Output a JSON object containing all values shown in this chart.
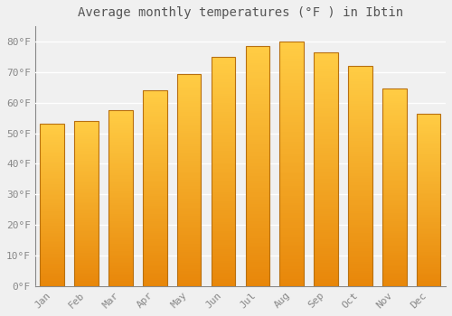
{
  "title": "Average monthly temperatures (°F ) in Ibtin",
  "months": [
    "Jan",
    "Feb",
    "Mar",
    "Apr",
    "May",
    "Jun",
    "Jul",
    "Aug",
    "Sep",
    "Oct",
    "Nov",
    "Dec"
  ],
  "values": [
    53,
    54,
    57.5,
    64,
    69.5,
    75,
    78.5,
    80,
    76.5,
    72,
    64.5,
    56.5
  ],
  "bar_color_bottom": "#E8870A",
  "bar_color_top": "#FFCC44",
  "bar_edge_color": "#B87010",
  "background_color": "#F0F0F0",
  "plot_bg_color": "#F0F0F0",
  "grid_color": "#FFFFFF",
  "text_color": "#888888",
  "spine_color": "#888888",
  "ylim": [
    0,
    85
  ],
  "yticks": [
    0,
    10,
    20,
    30,
    40,
    50,
    60,
    70,
    80
  ],
  "ytick_labels": [
    "0°F",
    "10°F",
    "20°F",
    "30°F",
    "40°F",
    "50°F",
    "60°F",
    "70°F",
    "80°F"
  ],
  "title_fontsize": 10,
  "tick_fontsize": 8,
  "figsize": [
    5.0,
    3.5
  ],
  "dpi": 100
}
